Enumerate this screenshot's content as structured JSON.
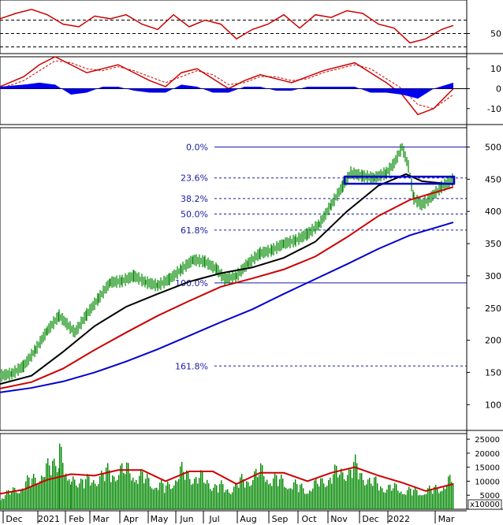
{
  "chart_data": [
    {
      "type": "line",
      "panel": "rsi",
      "yticks": [
        50
      ],
      "reference_lines": [
        30,
        50,
        70
      ],
      "series": [
        {
          "color": "#cc0000",
          "x": [
            0,
            20,
            40,
            60,
            80,
            100,
            120,
            140,
            160,
            180,
            200,
            220,
            240,
            260,
            280,
            300,
            320,
            340,
            360,
            380,
            400,
            420,
            440,
            460,
            480,
            500,
            520,
            540,
            560,
            575
          ],
          "y": [
            72,
            80,
            86,
            78,
            64,
            60,
            76,
            72,
            78,
            64,
            56,
            78,
            60,
            70,
            64,
            42,
            56,
            64,
            78,
            58,
            78,
            74,
            84,
            80,
            64,
            58,
            36,
            42,
            56,
            62
          ]
        }
      ]
    },
    {
      "type": "area",
      "panel": "macd",
      "yticks": [
        10,
        0,
        -10
      ],
      "series": [
        {
          "color": "#cc0000",
          "x": [
            0,
            30,
            50,
            70,
            90,
            110,
            130,
            150,
            170,
            190,
            210,
            230,
            250,
            270,
            290,
            310,
            330,
            350,
            370,
            390,
            410,
            430,
            450,
            470,
            490,
            510,
            530,
            550,
            575
          ],
          "y": [
            1,
            6,
            12,
            16,
            12,
            8,
            10,
            12,
            8,
            4,
            1,
            8,
            10,
            5,
            0,
            4,
            7,
            5,
            3,
            6,
            9,
            11,
            13,
            8,
            3,
            -3,
            -13,
            -10,
            0
          ]
        },
        {
          "color": "#cc0000",
          "style": "dashed",
          "x": [
            0,
            30,
            50,
            70,
            90,
            110,
            130,
            150,
            170,
            190,
            210,
            230,
            250,
            270,
            290,
            310,
            330,
            350,
            370,
            390,
            410,
            430,
            450,
            470,
            490,
            510,
            530,
            550,
            575
          ],
          "y": [
            0,
            4,
            9,
            14,
            13,
            10,
            9,
            11,
            9,
            6,
            3,
            6,
            9,
            7,
            2,
            3,
            6,
            6,
            4,
            5,
            8,
            10,
            12,
            10,
            5,
            0,
            -8,
            -10,
            -3
          ]
        },
        {
          "color": "#0000ee",
          "kind": "histogram",
          "x": [
            0,
            30,
            50,
            70,
            90,
            110,
            130,
            150,
            170,
            190,
            210,
            230,
            250,
            270,
            290,
            310,
            330,
            350,
            370,
            390,
            410,
            430,
            450,
            470,
            490,
            510,
            530,
            550,
            575
          ],
          "y": [
            1,
            2,
            3,
            2,
            -3,
            -2,
            1,
            1,
            -1,
            -2,
            -2,
            2,
            1,
            -2,
            -2,
            1,
            1,
            -1,
            -1,
            1,
            1,
            1,
            1,
            -2,
            -2,
            -3,
            -5,
            0,
            3
          ]
        }
      ]
    },
    {
      "type": "line",
      "panel": "price",
      "yticks": [
        500,
        450,
        400,
        350,
        300,
        250,
        200,
        150,
        100
      ],
      "fibonacci": [
        {
          "label": "0.0%",
          "value": 500
        },
        {
          "label": "23.6%",
          "value": 452
        },
        {
          "label": "38.2%",
          "value": 420
        },
        {
          "label": "50.0%",
          "value": 396
        },
        {
          "label": "61.8%",
          "value": 371
        },
        {
          "label": "100.0%",
          "value": 289
        },
        {
          "label": "161.8%",
          "value": 160
        }
      ],
      "resistance_zone": {
        "x": [
          437,
          576
        ],
        "y_low": 443,
        "y_high": 454
      },
      "series": [
        {
          "kind": "price",
          "color": "#008800",
          "x": [
            0,
            15,
            30,
            45,
            60,
            75,
            85,
            95,
            110,
            125,
            140,
            155,
            170,
            185,
            200,
            215,
            230,
            245,
            260,
            275,
            285,
            300,
            315,
            330,
            345,
            360,
            375,
            390,
            405,
            420,
            435,
            445,
            460,
            475,
            490,
            500,
            510,
            518,
            525,
            535,
            545,
            560,
            575
          ],
          "y": [
            145,
            148,
            160,
            185,
            215,
            238,
            225,
            212,
            240,
            265,
            290,
            292,
            300,
            290,
            285,
            295,
            310,
            325,
            322,
            310,
            295,
            300,
            320,
            335,
            340,
            350,
            355,
            365,
            380,
            410,
            440,
            460,
            455,
            452,
            460,
            475,
            500,
            470,
            420,
            410,
            420,
            438,
            450
          ]
        },
        {
          "kind": "ma",
          "color": "#000000",
          "x": [
            0,
            40,
            80,
            120,
            160,
            200,
            240,
            280,
            320,
            360,
            400,
            440,
            480,
            515,
            535,
            575
          ],
          "y": [
            132,
            145,
            182,
            222,
            252,
            272,
            291,
            304,
            313,
            328,
            353,
            400,
            440,
            458,
            447,
            442
          ]
        },
        {
          "kind": "ma",
          "color": "#cc0000",
          "x": [
            0,
            40,
            80,
            120,
            160,
            200,
            240,
            280,
            320,
            360,
            400,
            440,
            480,
            520,
            575
          ],
          "y": [
            125,
            135,
            156,
            185,
            212,
            238,
            261,
            283,
            296,
            310,
            330,
            360,
            393,
            418,
            438
          ]
        },
        {
          "kind": "ma",
          "color": "#0000cc",
          "x": [
            0,
            40,
            80,
            120,
            160,
            200,
            240,
            280,
            320,
            360,
            400,
            440,
            480,
            520,
            575
          ],
          "y": [
            119,
            126,
            136,
            150,
            167,
            186,
            207,
            228,
            248,
            272,
            295,
            318,
            342,
            363,
            383
          ]
        }
      ]
    },
    {
      "type": "bar",
      "panel": "volume",
      "yticks": [
        25000,
        20000,
        15000,
        10000,
        5000
      ],
      "unit_label": "x10000",
      "series": [
        {
          "kind": "volume",
          "color": "#008800",
          "x": [
            0,
            20,
            40,
            60,
            75,
            90,
            110,
            130,
            150,
            170,
            190,
            210,
            230,
            250,
            270,
            290,
            310,
            330,
            350,
            370,
            390,
            410,
            430,
            450,
            470,
            490,
            510,
            530,
            550,
            575
          ],
          "y": [
            5000,
            8000,
            12000,
            16000,
            22000,
            13000,
            11000,
            14000,
            16000,
            15000,
            11000,
            9000,
            15000,
            13000,
            10000,
            8000,
            12000,
            15000,
            12000,
            10000,
            8000,
            12000,
            15000,
            17000,
            11000,
            9000,
            8000,
            7000,
            8000,
            12000
          ]
        },
        {
          "kind": "ma",
          "color": "#cc0000",
          "x": [
            0,
            30,
            60,
            90,
            120,
            150,
            180,
            210,
            240,
            270,
            300,
            330,
            360,
            390,
            420,
            450,
            480,
            510,
            540,
            575
          ],
          "y": [
            5500,
            7000,
            10500,
            12500,
            12000,
            14000,
            14000,
            10000,
            13500,
            13500,
            9000,
            13000,
            13000,
            10000,
            13000,
            15000,
            12000,
            9500,
            6500,
            9000
          ]
        }
      ]
    }
  ],
  "x_axis": {
    "labels": [
      "Dec",
      "2021",
      "Feb",
      "Mar",
      "Apr",
      "May",
      "Jun",
      "Jul",
      "Aug",
      "Sep",
      "Oct",
      "Nov",
      "Dec",
      "2022",
      "Mar"
    ],
    "positions": [
      18,
      62,
      97,
      128,
      166,
      202,
      237,
      272,
      315,
      355,
      392,
      430,
      470,
      506,
      566
    ]
  }
}
